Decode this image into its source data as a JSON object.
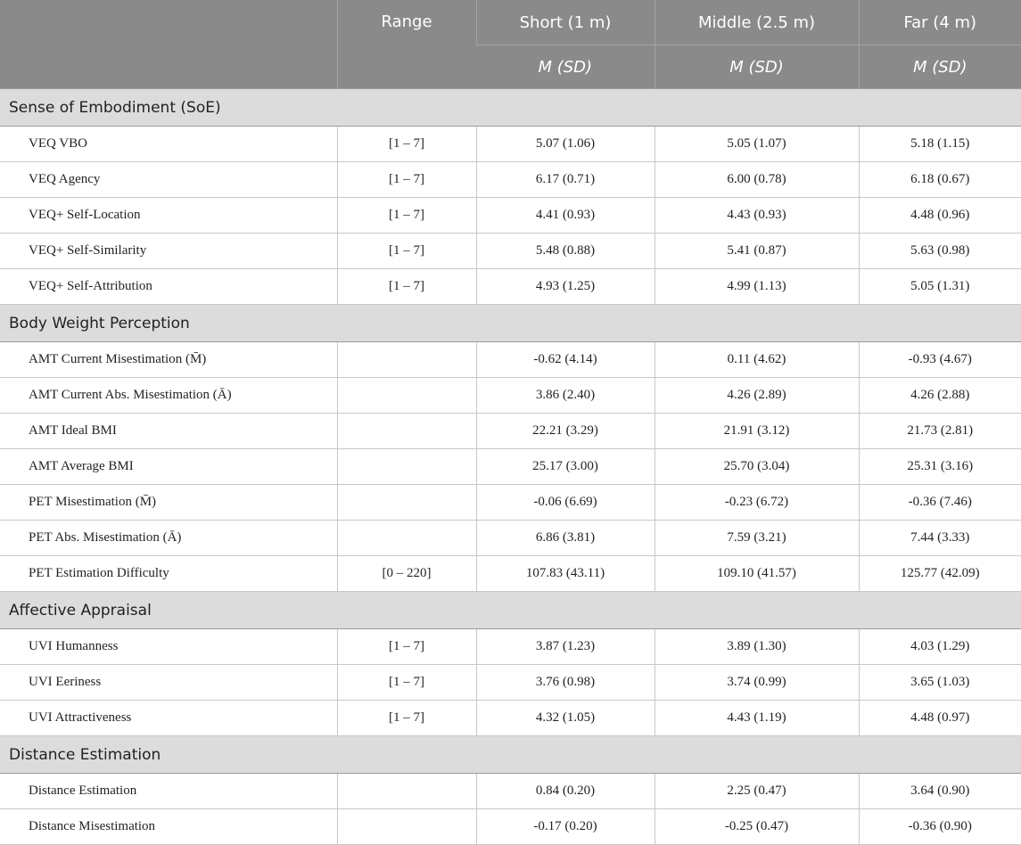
{
  "header": {
    "col_range": "Range",
    "col_short": "Short (1 m)",
    "col_middle": "Middle (2.5 m)",
    "col_far": "Far (4 m)",
    "sub_short": "M (SD)",
    "sub_middle": "M (SD)",
    "sub_far": "M (SD)"
  },
  "sections": [
    {
      "title": "Sense of Embodiment (SoE)",
      "rows": [
        {
          "label": "VEQ VBO",
          "range": "[1 – 7]",
          "short": "5.07 (1.06)",
          "middle": "5.05 (1.07)",
          "far": "5.18 (1.15)"
        },
        {
          "label": "VEQ Agency",
          "range": "[1 – 7]",
          "short": "6.17 (0.71)",
          "middle": "6.00 (0.78)",
          "far": "6.18 (0.67)"
        },
        {
          "label": "VEQ+ Self-Location",
          "range": "[1 – 7]",
          "short": "4.41 (0.93)",
          "middle": "4.43 (0.93)",
          "far": "4.48 (0.96)"
        },
        {
          "label": "VEQ+ Self-Similarity",
          "range": "[1 – 7]",
          "short": "5.48 (0.88)",
          "middle": "5.41 (0.87)",
          "far": "5.63 (0.98)"
        },
        {
          "label": "VEQ+ Self-Attribution",
          "range": "[1 – 7]",
          "short": "4.93 (1.25)",
          "middle": "4.99 (1.13)",
          "far": "5.05 (1.31)"
        }
      ]
    },
    {
      "title": "Body Weight Perception",
      "rows": [
        {
          "label": "AMT Current Misestimation (M̄)",
          "range": "",
          "short": "-0.62 (4.14)",
          "middle": "0.11 (4.62)",
          "far": "-0.93 (4.67)"
        },
        {
          "label": "AMT Current Abs. Misestimation (Ā)",
          "range": "",
          "short": "3.86 (2.40)",
          "middle": "4.26 (2.89)",
          "far": "4.26 (2.88)"
        },
        {
          "label": "AMT Ideal BMI",
          "range": "",
          "short": "22.21 (3.29)",
          "middle": "21.91 (3.12)",
          "far": "21.73 (2.81)"
        },
        {
          "label": "AMT Average BMI",
          "range": "",
          "short": "25.17 (3.00)",
          "middle": "25.70 (3.04)",
          "far": "25.31 (3.16)"
        },
        {
          "label": "PET Misestimation (M̄)",
          "range": "",
          "short": "-0.06 (6.69)",
          "middle": "-0.23 (6.72)",
          "far": "-0.36 (7.46)"
        },
        {
          "label": "PET Abs. Misestimation (Ā)",
          "range": "",
          "short": "6.86 (3.81)",
          "middle": "7.59 (3.21)",
          "far": "7.44 (3.33)"
        },
        {
          "label": "PET Estimation Difficulty",
          "range": "[0 – 220]",
          "short": "107.83 (43.11)",
          "middle": "109.10 (41.57)",
          "far": "125.77 (42.09)"
        }
      ]
    },
    {
      "title": "Affective Appraisal",
      "rows": [
        {
          "label": "UVI Humanness",
          "range": "[1 – 7]",
          "short": "3.87 (1.23)",
          "middle": "3.89 (1.30)",
          "far": "4.03 (1.29)"
        },
        {
          "label": "UVI Eeriness",
          "range": "[1 – 7]",
          "short": "3.76 (0.98)",
          "middle": "3.74 (0.99)",
          "far": "3.65 (1.03)"
        },
        {
          "label": "UVI Attractiveness",
          "range": "[1 – 7]",
          "short": "4.32 (1.05)",
          "middle": "4.43 (1.19)",
          "far": "4.48 (0.97)"
        }
      ]
    },
    {
      "title": "Distance Estimation",
      "rows": [
        {
          "label": "Distance Estimation",
          "range": "",
          "short": "0.84 (0.20)",
          "middle": "2.25 (0.47)",
          "far": "3.64 (0.90)"
        },
        {
          "label": "Distance Misestimation",
          "range": "",
          "short": "-0.17 (0.20)",
          "middle": "-0.25 (0.47)",
          "far": "-0.36 (0.90)"
        }
      ]
    }
  ]
}
